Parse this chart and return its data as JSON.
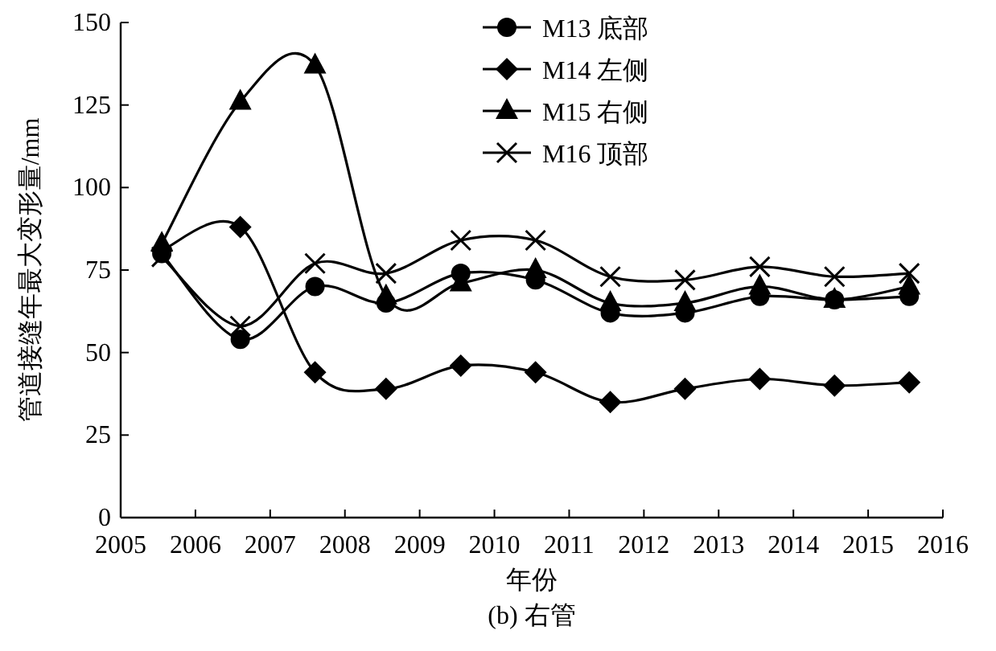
{
  "chart_data": {
    "type": "line",
    "xlabel": "年份",
    "ylabel": "管道接缝年最大变形量/mm",
    "annotations": [
      "(b) 右管"
    ],
    "xlim": [
      2005,
      2016
    ],
    "xticks": [
      2005,
      2006,
      2007,
      2008,
      2009,
      2010,
      2011,
      2012,
      2013,
      2014,
      2015,
      2016
    ],
    "ylim": [
      0,
      150
    ],
    "yticks": [
      0,
      25,
      50,
      75,
      100,
      125,
      150
    ],
    "grid": false,
    "legend": "top right",
    "line_style": "solid",
    "x": [
      2005.55,
      2006.6,
      2007.6,
      2008.55,
      2009.55,
      2010.55,
      2011.55,
      2012.55,
      2013.55,
      2014.55,
      2015.55
    ],
    "series": [
      {
        "name": "M13 底部",
        "color": "#000000",
        "marker": "circle",
        "values": [
          80,
          54,
          70,
          65,
          74,
          72,
          62,
          62,
          67,
          66,
          67
        ]
      },
      {
        "name": "M14 左侧",
        "color": "#000000",
        "marker": "diamond",
        "values": [
          81,
          88,
          44,
          39,
          46,
          44,
          35,
          39,
          42,
          40,
          41
        ]
      },
      {
        "name": "M15 右侧",
        "color": "#000000",
        "marker": "triangle",
        "values": [
          83,
          126,
          137,
          67,
          71,
          75,
          65,
          65,
          70,
          66,
          70
        ]
      },
      {
        "name": "M16 顶部",
        "color": "#000000",
        "marker": "cross",
        "values": [
          79,
          58,
          77,
          74,
          84,
          84,
          73,
          72,
          76,
          73,
          74
        ]
      }
    ]
  }
}
